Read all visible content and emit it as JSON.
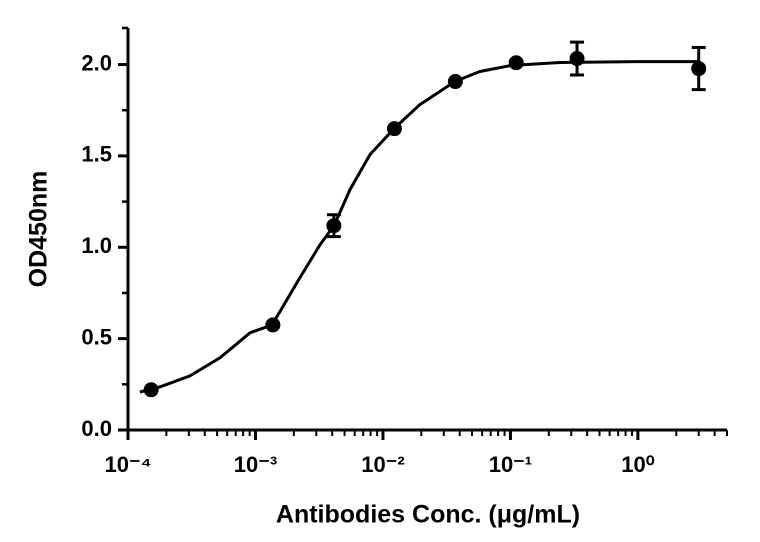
{
  "chart_data": {
    "type": "scatter",
    "xlabel": "Antibodies Conc. (μg/mL)",
    "ylabel": "OD450nm",
    "xscale": "log",
    "color": "#000000",
    "xlim": [
      0.0001,
      5
    ],
    "ylim": [
      0,
      2.2
    ],
    "xticks": [
      {
        "value": 0.0001,
        "label": "10⁻⁴"
      },
      {
        "value": 0.001,
        "label": "10⁻³"
      },
      {
        "value": 0.01,
        "label": "10⁻²"
      },
      {
        "value": 0.1,
        "label": "10⁻¹"
      },
      {
        "value": 1,
        "label": "10⁰"
      }
    ],
    "xminorticks": [
      0.0002,
      0.0003,
      0.0004,
      0.0005,
      0.0006,
      0.0007,
      0.0008,
      0.0009,
      0.002,
      0.003,
      0.004,
      0.005,
      0.006,
      0.007,
      0.008,
      0.009,
      0.02,
      0.03,
      0.04,
      0.05,
      0.06,
      0.07,
      0.08,
      0.09,
      0.2,
      0.3,
      0.4,
      0.5,
      0.6,
      0.7,
      0.8,
      0.9,
      2,
      3,
      4,
      5
    ],
    "yticks": [
      {
        "value": 0,
        "label": "0.0"
      },
      {
        "value": 0.5,
        "label": "0.5"
      },
      {
        "value": 1,
        "label": "1.0"
      },
      {
        "value": 1.5,
        "label": "1.5"
      },
      {
        "value": 2,
        "label": "2.0"
      }
    ],
    "yminorticks": [
      0.25,
      0.75,
      1.25,
      1.75,
      2.2
    ],
    "x": [
      0.000152,
      0.00137,
      0.00412,
      0.0123,
      0.037,
      0.111,
      0.333,
      3
    ],
    "values": [
      0.22,
      0.575,
      1.118,
      1.649,
      1.907,
      2.01,
      2.033,
      1.978
    ],
    "errors": [
      null,
      null,
      0.06,
      null,
      null,
      null,
      0.09,
      0.115
    ],
    "fit": {
      "x": [
        0.000124,
        0.000178,
        0.000306,
        0.000527,
        0.000906,
        0.00135,
        0.00223,
        0.00321,
        0.00413,
        0.00551,
        0.00791,
        0.0122,
        0.0195,
        0.0367,
        0.0577,
        0.101,
        0.244,
        1.04,
        3.06
      ],
      "values": [
        0.208,
        0.236,
        0.296,
        0.395,
        0.532,
        0.575,
        0.833,
        1.014,
        1.118,
        1.315,
        1.507,
        1.649,
        1.781,
        1.907,
        1.962,
        1.995,
        2.011,
        2.016,
        2.016
      ]
    }
  }
}
